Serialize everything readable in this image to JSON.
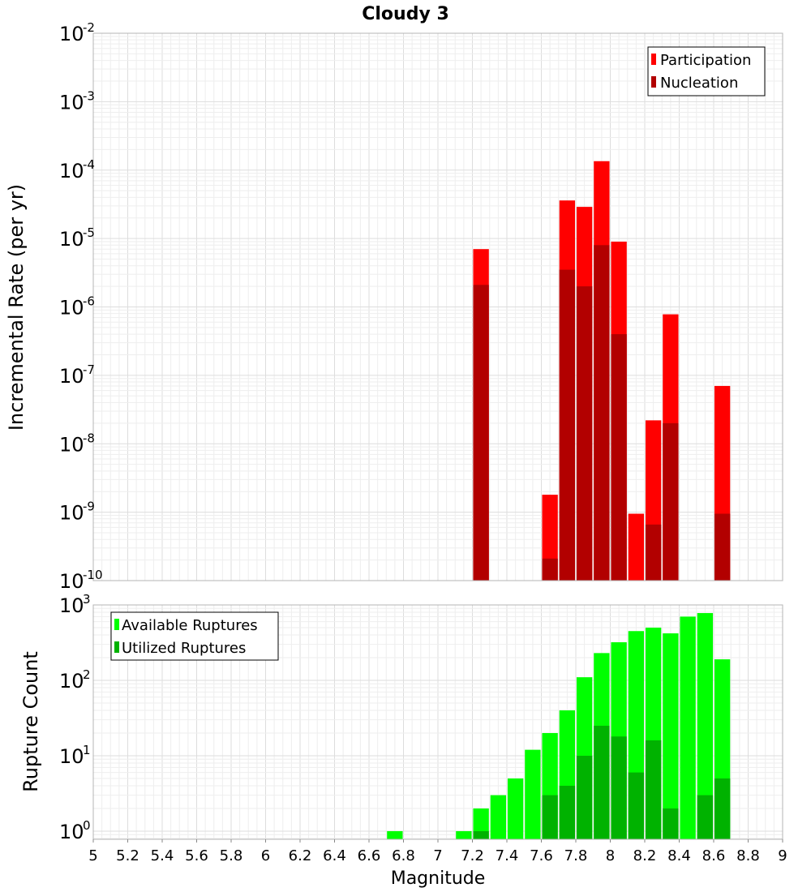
{
  "title": "Cloudy 3",
  "colors": {
    "participation": "#ff0000",
    "nucleation": "#b20000",
    "available": "#00ff00",
    "utilized": "#00b200",
    "grid_major": "#dddddd",
    "grid_minor": "#eeeeee",
    "frame": "#b4b4b4"
  },
  "chart_data": [
    {
      "type": "bar",
      "title": "Cloudy 3",
      "xlabel": "",
      "ylabel": "Incremental Rate (per yr)",
      "yscale": "log",
      "ylim": [
        1e-10,
        0.01
      ],
      "xlim": [
        5,
        9
      ],
      "bin_width": 0.1,
      "grid": true,
      "legend": "top-right",
      "ytick_exponents": [
        "-2",
        "-3",
        "-4",
        "-5",
        "-6",
        "-7",
        "-8",
        "-9",
        "-10"
      ],
      "series": [
        {
          "name": "Participation",
          "x": [
            7.25,
            7.65,
            7.75,
            7.85,
            7.95,
            8.05,
            8.15,
            8.25,
            8.35,
            8.65
          ],
          "values": [
            7e-06,
            1.8e-09,
            3.6e-05,
            2.9e-05,
            0.000135,
            9e-06,
            9.5e-10,
            2.2e-08,
            7.8e-07,
            7e-08
          ]
        },
        {
          "name": "Nucleation",
          "x": [
            7.25,
            7.65,
            7.75,
            7.85,
            7.95,
            8.05,
            8.25,
            8.35,
            8.65
          ],
          "values": [
            2.1e-06,
            2.1e-10,
            3.5e-06,
            2e-06,
            8e-06,
            4e-07,
            6.6e-10,
            2e-08,
            9.5e-10
          ]
        }
      ]
    },
    {
      "type": "bar",
      "xlabel": "Magnitude",
      "ylabel": "Rupture Count",
      "yscale": "log",
      "ylim": [
        0.78,
        1000
      ],
      "xlim": [
        5,
        9
      ],
      "bin_width": 0.1,
      "grid": true,
      "legend": "top-left",
      "ytick_exponents": [
        "3",
        "2",
        "1",
        "0"
      ],
      "xticks": [
        "5",
        "5.2",
        "5.4",
        "5.6",
        "5.8",
        "6",
        "6.2",
        "6.4",
        "6.6",
        "6.8",
        "7",
        "7.2",
        "7.4",
        "7.6",
        "7.8",
        "8",
        "8.2",
        "8.4",
        "8.6",
        "8.8",
        "9"
      ],
      "series": [
        {
          "name": "Available Ruptures",
          "x": [
            6.75,
            7.15,
            7.25,
            7.35,
            7.45,
            7.55,
            7.65,
            7.75,
            7.85,
            7.95,
            8.05,
            8.15,
            8.25,
            8.35,
            8.45,
            8.55,
            8.65
          ],
          "values": [
            1,
            1,
            2,
            3,
            5,
            12,
            20,
            40,
            110,
            230,
            320,
            450,
            500,
            420,
            700,
            780,
            190
          ]
        },
        {
          "name": "Utilized Ruptures",
          "x": [
            7.25,
            7.65,
            7.75,
            7.85,
            7.95,
            8.05,
            8.15,
            8.25,
            8.35,
            8.45,
            8.55,
            8.65
          ],
          "values": [
            1,
            3,
            4,
            10,
            25,
            18,
            6,
            16,
            2,
            0,
            3,
            5
          ]
        }
      ]
    }
  ]
}
